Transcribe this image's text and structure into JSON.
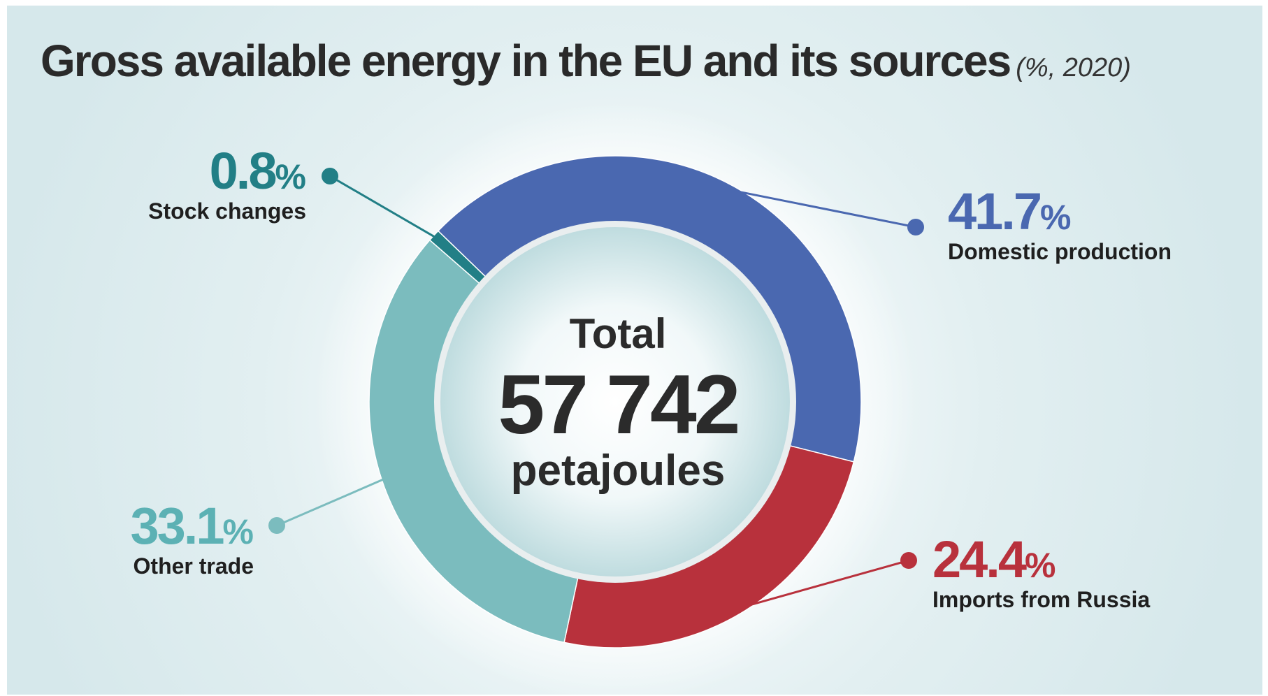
{
  "title": "Gross available energy in the EU and its sources",
  "subtitle": "(%, 2020)",
  "center": {
    "line1": "Total",
    "line2": "57 742",
    "line3": "petajoules"
  },
  "chart_data": {
    "type": "pie",
    "donut": true,
    "title": "Gross available energy in the EU and its sources",
    "subtitle": "(%, 2020)",
    "unit": "%",
    "slices": [
      {
        "label": "Domestic production",
        "value": 41.7,
        "display": "41.7",
        "color": "#4a68b0"
      },
      {
        "label": "Imports from Russia",
        "value": 24.4,
        "display": "24.4",
        "color": "#b8313c"
      },
      {
        "label": "Other trade",
        "value": 33.1,
        "display": "33.1",
        "color": "#7bbcbe"
      },
      {
        "label": "Stock changes",
        "value": 0.8,
        "display": "0.8",
        "color": "#227f86"
      }
    ],
    "total": "57 742",
    "total_unit": "petajoules"
  }
}
